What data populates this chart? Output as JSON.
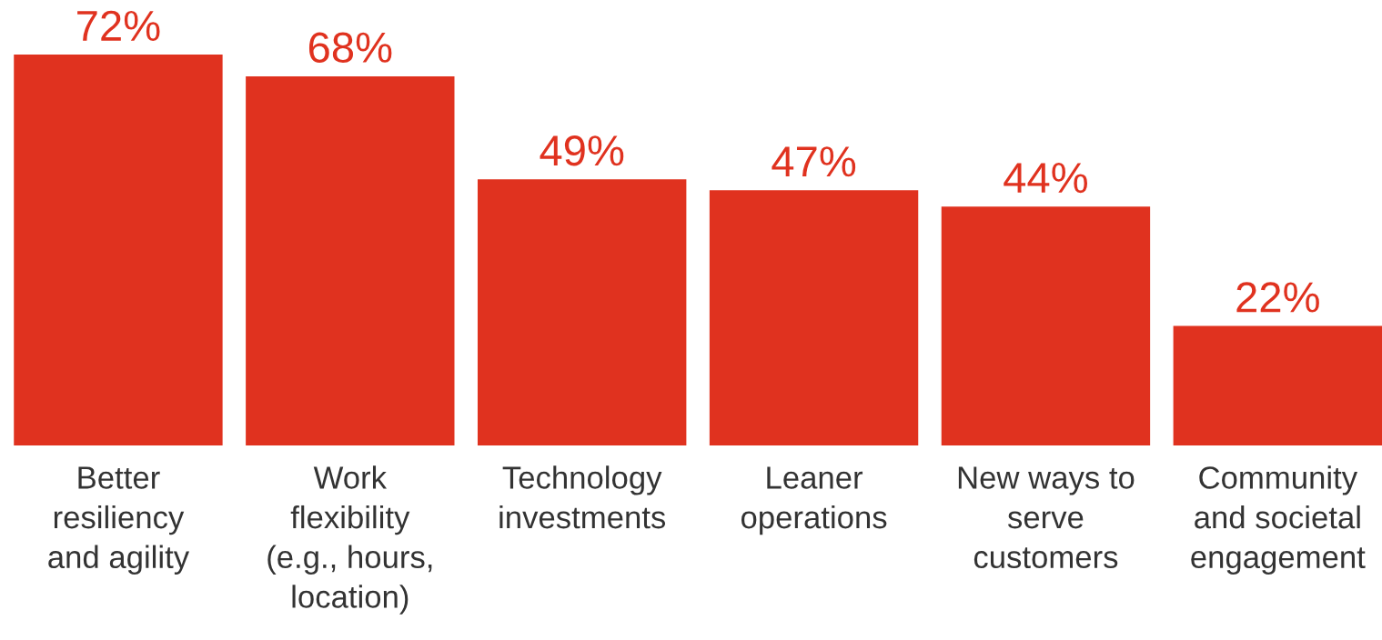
{
  "chart_data": {
    "type": "bar",
    "categories": [
      "Better\nresiliency\nand agility",
      "Work\nflexibility\n(e.g., hours,\nlocation)",
      "Technology\ninvestments",
      "Leaner\noperations",
      "New ways to\nserve\ncustomers",
      "Community\nand societal\nengagement"
    ],
    "values": [
      72,
      68,
      49,
      47,
      44,
      22
    ],
    "value_labels": [
      "72%",
      "68%",
      "49%",
      "47%",
      "44%",
      "22%"
    ],
    "color": "#e0321f",
    "grid": false,
    "legend": false
  }
}
